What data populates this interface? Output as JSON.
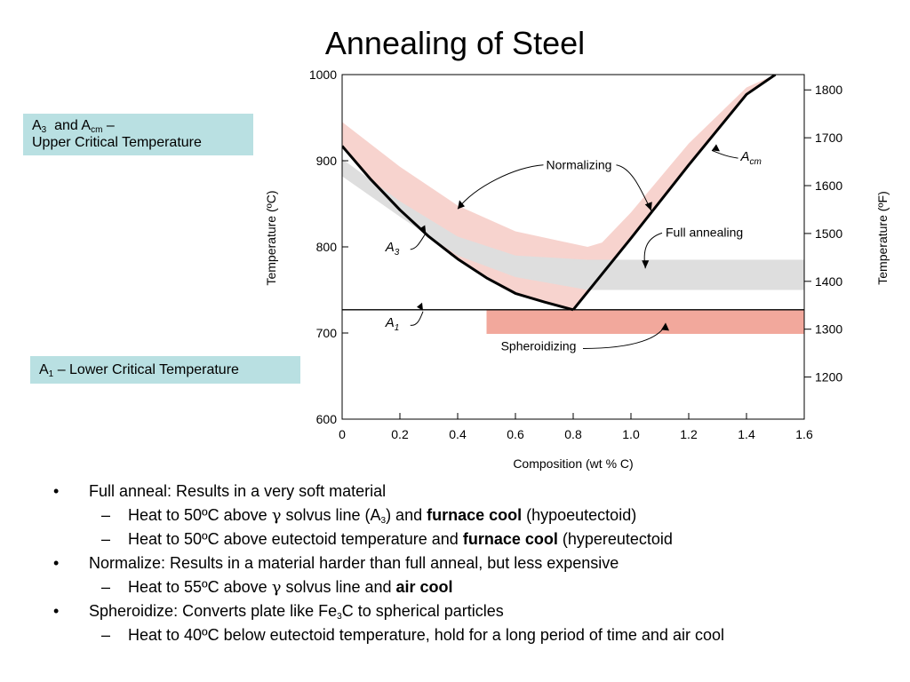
{
  "title": "Annealing of Steel",
  "callouts": {
    "upper": {
      "a3_symbol": "A",
      "a3_sub": "3",
      "and_text": "and A",
      "acm_sub": "cm",
      "dash": "–",
      "line2": "Upper Critical Temperature"
    },
    "lower": {
      "a1_symbol": "A",
      "a1_sub": "1",
      "text": "– Lower Critical Temperature"
    }
  },
  "chart_data": {
    "type": "area",
    "xlabel": "Composition (wt % C)",
    "ylabel": "Temperature (ºC)",
    "y2label": "Temperature (ºF)",
    "xlim": [
      0,
      1.6
    ],
    "ylim": [
      600,
      1000
    ],
    "x_ticks": [
      "0",
      "0.2",
      "0.4",
      "0.6",
      "0.8",
      "1.0",
      "1.2",
      "1.4",
      "1.6"
    ],
    "x_tick_values": [
      0,
      0.2,
      0.4,
      0.6,
      0.8,
      1.0,
      1.2,
      1.4,
      1.6
    ],
    "y_ticks": [
      "600",
      "700",
      "800",
      "900",
      "1000"
    ],
    "y_tick_values": [
      600,
      700,
      800,
      900,
      1000
    ],
    "y2_ticks": [
      "1200",
      "1300",
      "1400",
      "1500",
      "1600",
      "1700",
      "1800"
    ],
    "y2_tick_values": [
      1200,
      1300,
      1400,
      1500,
      1600,
      1700,
      1800
    ],
    "lines": [
      {
        "name": "A3",
        "x": [
          0,
          0.1,
          0.2,
          0.3,
          0.4,
          0.5,
          0.6,
          0.7,
          0.8
        ],
        "y": [
          917,
          878,
          843,
          812,
          786,
          764,
          746,
          736,
          727
        ]
      },
      {
        "name": "Acm",
        "x": [
          0.8,
          1.0,
          1.2,
          1.4,
          1.5
        ],
        "y": [
          727,
          810,
          895,
          977,
          1000
        ]
      },
      {
        "name": "A1",
        "x": [
          0,
          1.6
        ],
        "y": [
          727,
          727
        ]
      }
    ],
    "bands": [
      {
        "name": "Normalizing",
        "color": "#f7d3ce",
        "upper": {
          "x": [
            0,
            0.2,
            0.4,
            0.6,
            0.85,
            0.9,
            1.0,
            1.2,
            1.4,
            1.5
          ],
          "y": [
            945,
            893,
            848,
            818,
            800,
            805,
            840,
            920,
            985,
            1000
          ]
        },
        "lower": {
          "x": [
            0,
            0.2,
            0.4,
            0.6,
            0.8,
            1.0,
            1.2,
            1.4,
            1.5
          ],
          "y": [
            917,
            843,
            786,
            746,
            727,
            810,
            895,
            977,
            1000
          ]
        }
      },
      {
        "name": "Full annealing",
        "color": "#dedede",
        "upper": {
          "x": [
            0,
            0.2,
            0.4,
            0.6,
            0.85,
            1.6
          ],
          "y": [
            902,
            853,
            812,
            790,
            785,
            785
          ]
        },
        "lower": {
          "x": [
            0,
            0.2,
            0.4,
            0.6,
            0.85,
            1.6
          ],
          "y": [
            882,
            835,
            790,
            765,
            750,
            750
          ]
        }
      },
      {
        "name": "Spheroidizing",
        "color": "#f2a89c",
        "x": [
          0.5,
          1.6
        ],
        "y": [
          699,
          727
        ]
      }
    ],
    "annotations": [
      {
        "text": "Normalizing",
        "x": 0.82,
        "y": 890
      },
      {
        "text": "Full annealing",
        "x": 1.12,
        "y": 812
      },
      {
        "text": "Spheroidizing",
        "x": 0.68,
        "y": 680
      },
      {
        "label": "A",
        "sub": "cm",
        "x": 1.38,
        "y": 900
      },
      {
        "label": "A",
        "sub": "3",
        "x": 0.15,
        "y": 795
      },
      {
        "label": "A",
        "sub": "1",
        "x": 0.15,
        "y": 707
      }
    ]
  },
  "bullets": [
    {
      "level": 1,
      "mark": "•",
      "parts": [
        "Full anneal: Results in a very soft material"
      ]
    },
    {
      "level": 2,
      "mark": "–",
      "parts": [
        "Heat to 50ºC above ",
        "γ",
        " solvus line (A",
        "3",
        ") and ",
        "furnace cool",
        " (hypoeutectoid)"
      ]
    },
    {
      "level": 2,
      "mark": "–",
      "parts": [
        "Heat to 50ºC above eutectoid temperature and ",
        "furnace cool",
        " (hypereutectoid"
      ]
    },
    {
      "level": 1,
      "mark": "•",
      "parts": [
        "Normalize: Results in a material harder than full anneal, but less expensive"
      ]
    },
    {
      "level": 2,
      "mark": "–",
      "parts": [
        "Heat to 55ºC above ",
        "γ",
        " solvus line and ",
        "air cool"
      ]
    },
    {
      "level": 1,
      "mark": "•",
      "parts": [
        "Spheroidize: Converts plate like Fe",
        "3",
        "C to spherical particles"
      ]
    },
    {
      "level": 2,
      "mark": "–",
      "parts": [
        "Heat to 40ºC below eutectoid temperature, hold for a long period of time and air cool"
      ]
    }
  ]
}
